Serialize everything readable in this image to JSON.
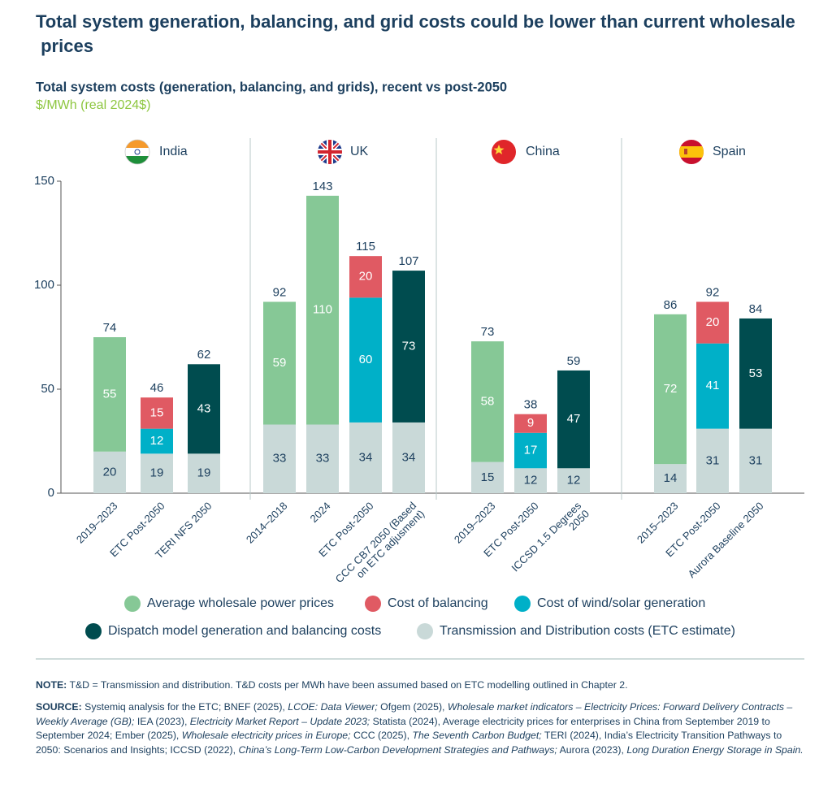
{
  "chart_data": {
    "type": "stacked-bar",
    "title": "Total system generation, balancing, and grid costs could be lower than current wholesale prices",
    "subtitle": "Total system costs (generation, balancing, and grids), recent vs post-2050",
    "unit": "$/MWh (real 2024$)",
    "groups": [
      {
        "name": "India",
        "categories": [
          "2019–2023",
          "ETC Post-2050",
          "TERI NFS 2050"
        ]
      },
      {
        "name": "UK",
        "categories": [
          "2014–2018",
          "2024",
          "ETC Post-2050",
          "CCC CB7 2050 (Based on ETC adjusment)"
        ]
      },
      {
        "name": "China",
        "categories": [
          "2019–2023",
          "ETC Post-2050",
          "ICCSD 1.5 Degrees 2050"
        ]
      },
      {
        "name": "Spain",
        "categories": [
          "2015–2023",
          "ETC Post-2050",
          "Aurora Baseline 2050"
        ]
      }
    ],
    "series": [
      {
        "name": "Average wholesale power prices",
        "color": "#86c896",
        "values": [
          55,
          null,
          null,
          59,
          110,
          null,
          null,
          58,
          null,
          null,
          72,
          null,
          null
        ]
      },
      {
        "name": "Cost of balancing",
        "color": "#e05a63",
        "values": [
          null,
          15,
          null,
          null,
          null,
          20,
          null,
          null,
          9,
          null,
          null,
          20,
          null
        ]
      },
      {
        "name": "Cost of wind/solar generation",
        "color": "#00b0c8",
        "values": [
          null,
          12,
          null,
          null,
          null,
          60,
          null,
          null,
          17,
          null,
          null,
          41,
          null
        ]
      },
      {
        "name": "Dispatch model generation and balancing costs",
        "color": "#004c4f",
        "values": [
          null,
          null,
          43,
          null,
          null,
          null,
          73,
          null,
          null,
          47,
          null,
          null,
          53
        ]
      },
      {
        "name": "Transmission and Distribution costs (ETC estimate)",
        "color": "#c9d9d8",
        "values": [
          20,
          19,
          19,
          33,
          33,
          34,
          34,
          15,
          12,
          12,
          14,
          31,
          31
        ]
      }
    ],
    "totals": [
      74,
      46,
      62,
      92,
      143,
      115,
      107,
      73,
      38,
      59,
      86,
      92,
      84
    ],
    "ylim": [
      0,
      150
    ],
    "yticks": [
      0,
      50,
      100,
      150
    ],
    "note_label": "NOTE:",
    "note": "T&D = Transmission and distribution. T&D costs per MWh have been assumed based on ETC modelling outlined in Chapter 2.",
    "source_label": "SOURCE:",
    "source": [
      {
        "text": "Systemiq analysis for the ETC; BNEF (2025), ",
        "italic": false
      },
      {
        "text": "LCOE: Data Viewer;",
        "italic": true
      },
      {
        "text": " Ofgem (2025), ",
        "italic": false
      },
      {
        "text": "Wholesale market indicators – Electricity Prices: Forward Delivery Contracts – Weekly Average (GB);",
        "italic": true
      },
      {
        "text": " IEA (2023), ",
        "italic": false
      },
      {
        "text": "Electricity Market Report – Update 2023;",
        "italic": true
      },
      {
        "text": " Statista (2024), Average electricity prices for enterprises in China from September 2019 to September 2024; Ember (2025), ",
        "italic": false
      },
      {
        "text": "Wholesale electricity prices in Europe;",
        "italic": true
      },
      {
        "text": " CCC (2025), ",
        "italic": false
      },
      {
        "text": "The Seventh Carbon Budget;",
        "italic": true
      },
      {
        "text": " TERI (2024), India’s Electricity Transition Pathways to 2050: Scenarios and Insights; ICCSD (2022), ",
        "italic": false
      },
      {
        "text": "China’s Long-Term Low-Carbon Development Strategies and Pathways;",
        "italic": true
      },
      {
        "text": " Aurora (2023), ",
        "italic": false
      },
      {
        "text": "Long Duration Energy Storage in Spain.",
        "italic": true
      }
    ]
  }
}
